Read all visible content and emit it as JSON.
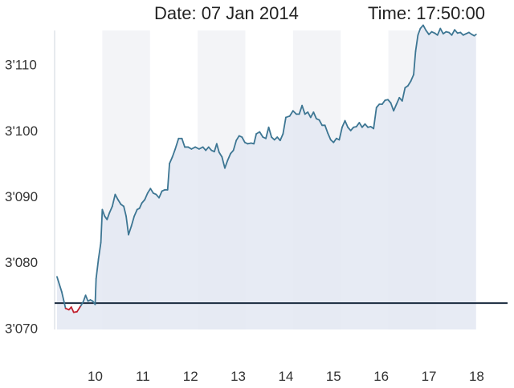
{
  "header": {
    "date_text": "Date: 07 Jan 2014",
    "time_text": "Time: 17:50:00"
  },
  "colors": {
    "line": "#3d7693",
    "line_below": "#c0202e",
    "reference": "#1b2b3f",
    "area_fill": "#e3e8f2",
    "band": "#f3f4f7"
  },
  "chart_data": {
    "type": "area",
    "title": "",
    "xlabel": "",
    "ylabel": "",
    "xlim": [
      9.15,
      18.65
    ],
    "ylim": [
      3069.8,
      3115.2
    ],
    "x_ticks": [
      {
        "x": 10,
        "label": "10"
      },
      {
        "x": 11,
        "label": "11"
      },
      {
        "x": 12,
        "label": "12"
      },
      {
        "x": 13,
        "label": "13"
      },
      {
        "x": 14,
        "label": "14"
      },
      {
        "x": 15,
        "label": "15"
      },
      {
        "x": 16,
        "label": "16"
      },
      {
        "x": 17,
        "label": "17"
      },
      {
        "x": 18,
        "label": "18"
      }
    ],
    "y_ticks": [
      {
        "y": 3070,
        "label": "3'070"
      },
      {
        "y": 3080,
        "label": "3'080"
      },
      {
        "y": 3090,
        "label": "3'090"
      },
      {
        "y": 3100,
        "label": "3'100"
      },
      {
        "y": 3110,
        "label": "3'110"
      }
    ],
    "reference_value": 3073.8,
    "shaded_bands": [
      [
        10.15,
        11.15
      ],
      [
        12.15,
        13.15
      ],
      [
        14.15,
        15.15
      ],
      [
        16.15,
        17.15
      ]
    ],
    "series": [
      {
        "values": [
          [
            9.2,
            3077.8
          ],
          [
            9.3,
            3075.5
          ],
          [
            9.38,
            3073.0
          ],
          [
            9.45,
            3072.8
          ],
          [
            9.5,
            3073.2
          ],
          [
            9.55,
            3072.4
          ],
          [
            9.62,
            3072.5
          ],
          [
            9.7,
            3073.4
          ],
          [
            9.75,
            3074.0
          ],
          [
            9.8,
            3075.0
          ],
          [
            9.85,
            3074.1
          ],
          [
            9.9,
            3074.3
          ],
          [
            9.95,
            3074.1
          ],
          [
            10.0,
            3073.6
          ],
          [
            10.02,
            3077.5
          ],
          [
            10.07,
            3080.5
          ],
          [
            10.12,
            3083.0
          ],
          [
            10.15,
            3088.0
          ],
          [
            10.2,
            3087.0
          ],
          [
            10.25,
            3086.5
          ],
          [
            10.3,
            3087.5
          ],
          [
            10.36,
            3088.5
          ],
          [
            10.42,
            3090.3
          ],
          [
            10.48,
            3089.5
          ],
          [
            10.54,
            3088.8
          ],
          [
            10.6,
            3088.5
          ],
          [
            10.65,
            3087.0
          ],
          [
            10.7,
            3084.2
          ],
          [
            10.76,
            3085.5
          ],
          [
            10.82,
            3087.0
          ],
          [
            10.88,
            3088.0
          ],
          [
            10.93,
            3088.2
          ],
          [
            10.98,
            3089.0
          ],
          [
            11.04,
            3089.5
          ],
          [
            11.1,
            3090.5
          ],
          [
            11.16,
            3091.2
          ],
          [
            11.22,
            3090.5
          ],
          [
            11.28,
            3090.3
          ],
          [
            11.34,
            3089.8
          ],
          [
            11.4,
            3090.8
          ],
          [
            11.46,
            3091.0
          ],
          [
            11.52,
            3091.0
          ],
          [
            11.56,
            3095.0
          ],
          [
            11.62,
            3096.0
          ],
          [
            11.68,
            3097.2
          ],
          [
            11.75,
            3098.8
          ],
          [
            11.82,
            3098.8
          ],
          [
            11.88,
            3097.5
          ],
          [
            11.95,
            3097.5
          ],
          [
            12.02,
            3097.2
          ],
          [
            12.1,
            3097.5
          ],
          [
            12.18,
            3097.2
          ],
          [
            12.26,
            3097.5
          ],
          [
            12.32,
            3097.0
          ],
          [
            12.38,
            3097.5
          ],
          [
            12.44,
            3097.0
          ],
          [
            12.5,
            3096.8
          ],
          [
            12.55,
            3098.0
          ],
          [
            12.6,
            3096.7
          ],
          [
            12.66,
            3096.0
          ],
          [
            12.72,
            3094.3
          ],
          [
            12.78,
            3095.5
          ],
          [
            12.84,
            3096.5
          ],
          [
            12.9,
            3097.0
          ],
          [
            12.96,
            3098.5
          ],
          [
            13.02,
            3099.2
          ],
          [
            13.08,
            3099.0
          ],
          [
            13.14,
            3098.2
          ],
          [
            13.2,
            3098.0
          ],
          [
            13.27,
            3098.1
          ],
          [
            13.33,
            3098.0
          ],
          [
            13.38,
            3099.5
          ],
          [
            13.45,
            3099.8
          ],
          [
            13.52,
            3099.0
          ],
          [
            13.58,
            3098.8
          ],
          [
            13.64,
            3100.5
          ],
          [
            13.7,
            3099.0
          ],
          [
            13.76,
            3098.6
          ],
          [
            13.82,
            3099.0
          ],
          [
            13.88,
            3098.5
          ],
          [
            13.94,
            3099.5
          ],
          [
            14.0,
            3102.0
          ],
          [
            14.08,
            3102.2
          ],
          [
            14.15,
            3103.0
          ],
          [
            14.22,
            3102.5
          ],
          [
            14.28,
            3102.5
          ],
          [
            14.34,
            3103.8
          ],
          [
            14.4,
            3102.5
          ],
          [
            14.46,
            3102.8
          ],
          [
            14.52,
            3102.0
          ],
          [
            14.58,
            3102.8
          ],
          [
            14.64,
            3101.8
          ],
          [
            14.7,
            3101.6
          ],
          [
            14.76,
            3100.8
          ],
          [
            14.82,
            3100.8
          ],
          [
            14.88,
            3099.6
          ],
          [
            14.94,
            3098.6
          ],
          [
            15.0,
            3098.2
          ],
          [
            15.06,
            3098.8
          ],
          [
            15.12,
            3098.6
          ],
          [
            15.18,
            3100.5
          ],
          [
            15.24,
            3101.5
          ],
          [
            15.3,
            3100.5
          ],
          [
            15.36,
            3100.0
          ],
          [
            15.42,
            3100.5
          ],
          [
            15.48,
            3100.6
          ],
          [
            15.54,
            3101.2
          ],
          [
            15.6,
            3100.5
          ],
          [
            15.66,
            3101.0
          ],
          [
            15.72,
            3100.5
          ],
          [
            15.78,
            3100.6
          ],
          [
            15.84,
            3100.3
          ],
          [
            15.9,
            3103.5
          ],
          [
            15.96,
            3104.0
          ],
          [
            16.02,
            3104.0
          ],
          [
            16.08,
            3104.6
          ],
          [
            16.14,
            3104.7
          ],
          [
            16.2,
            3104.2
          ],
          [
            16.26,
            3103.0
          ],
          [
            16.32,
            3104.0
          ],
          [
            16.38,
            3105.0
          ],
          [
            16.44,
            3104.5
          ],
          [
            16.5,
            3106.5
          ],
          [
            16.56,
            3106.8
          ],
          [
            16.62,
            3107.5
          ],
          [
            16.68,
            3108.5
          ],
          [
            16.72,
            3112.0
          ],
          [
            16.77,
            3114.5
          ],
          [
            16.82,
            3115.5
          ],
          [
            16.88,
            3116.0
          ],
          [
            16.94,
            3115.2
          ],
          [
            17.0,
            3114.6
          ],
          [
            17.06,
            3115.0
          ],
          [
            17.12,
            3114.8
          ],
          [
            17.18,
            3114.5
          ],
          [
            17.24,
            3115.5
          ],
          [
            17.3,
            3114.7
          ],
          [
            17.36,
            3115.0
          ],
          [
            17.42,
            3114.9
          ],
          [
            17.48,
            3114.5
          ],
          [
            17.54,
            3115.3
          ],
          [
            17.6,
            3114.8
          ],
          [
            17.66,
            3114.9
          ],
          [
            17.72,
            3114.5
          ],
          [
            17.78,
            3114.7
          ],
          [
            17.84,
            3114.9
          ],
          [
            17.9,
            3114.6
          ],
          [
            17.95,
            3114.4
          ],
          [
            17.99,
            3114.6
          ]
        ]
      }
    ]
  }
}
